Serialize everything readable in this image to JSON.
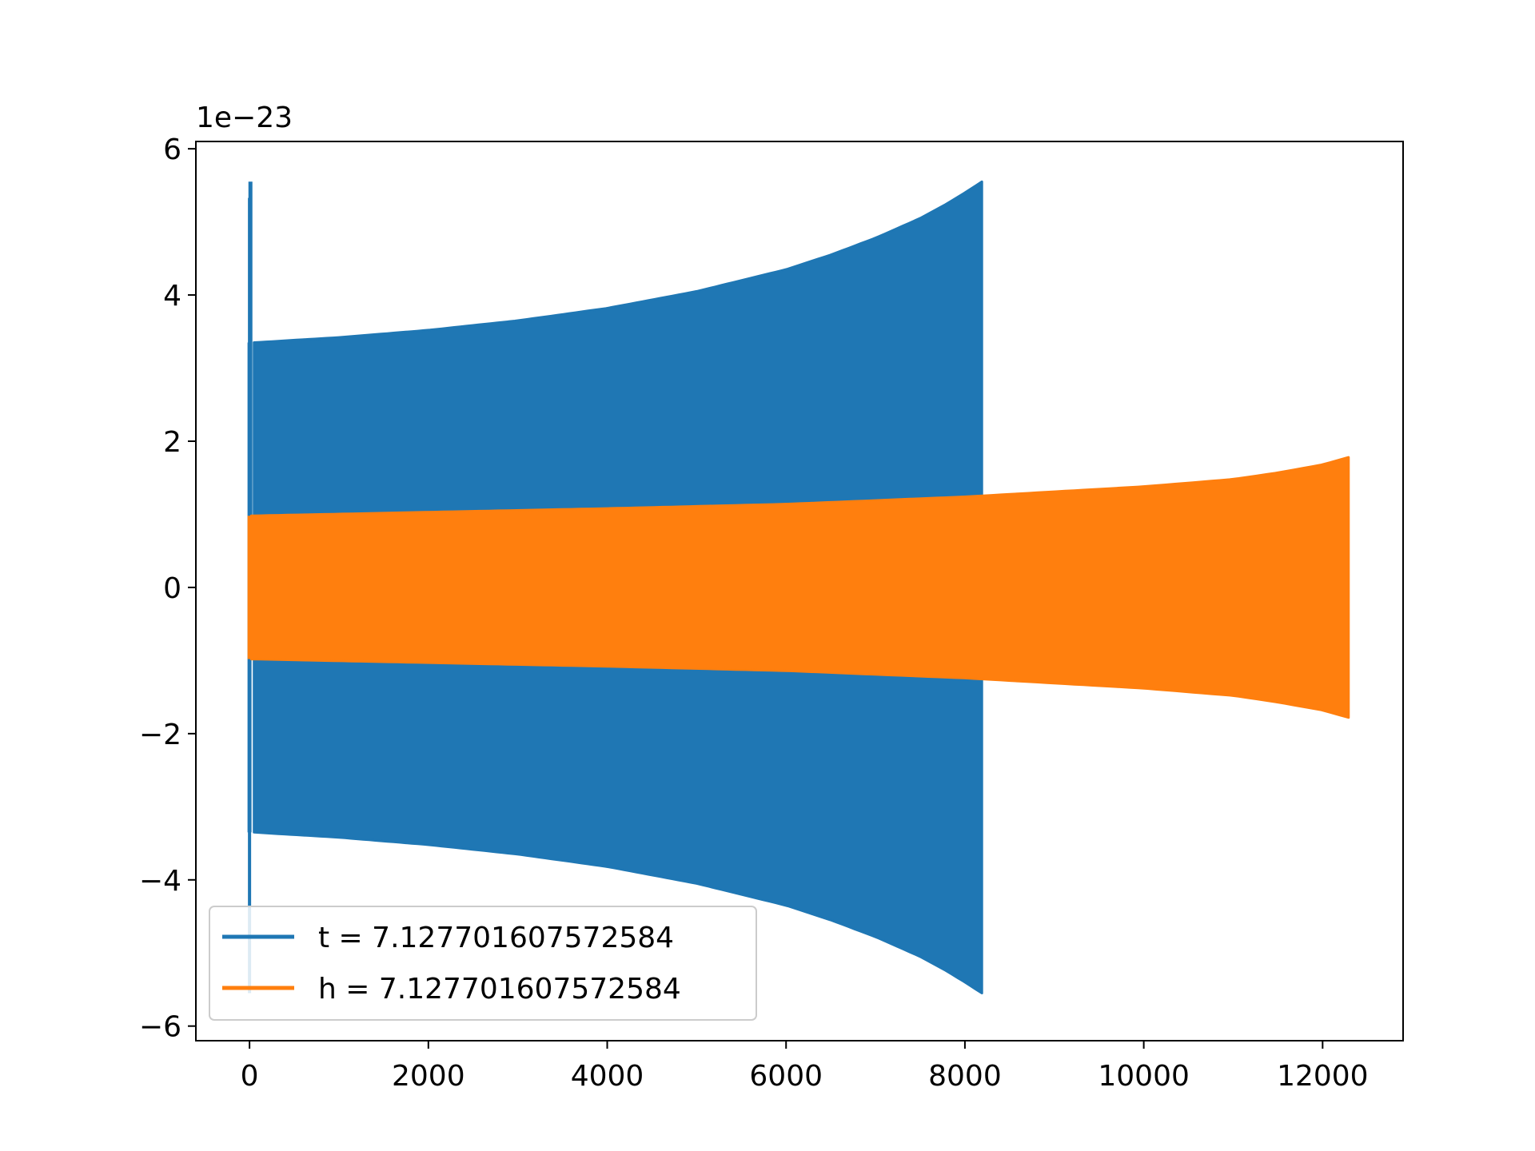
{
  "chart_data": {
    "type": "line",
    "title": "",
    "xlabel": "",
    "ylabel": "",
    "offset_text": "1e−23",
    "xlim": [
      -600,
      12900
    ],
    "ylim": [
      -6.2,
      6.1
    ],
    "x_ticks": [
      0,
      2000,
      4000,
      6000,
      8000,
      10000,
      12000
    ],
    "x_tick_labels": [
      "0",
      "2000",
      "4000",
      "6000",
      "8000",
      "10000",
      "12000"
    ],
    "y_ticks": [
      6,
      4,
      2,
      0,
      -2,
      -4,
      -6
    ],
    "y_tick_labels": [
      "6",
      "4",
      "2",
      "0",
      "−2",
      "−4",
      "−6"
    ],
    "grid": false,
    "legend_position": "lower-left",
    "series": [
      {
        "name": "t = 7.127701607572584",
        "color": "#1f77b4",
        "x_start": 0,
        "x_end": 8190,
        "spike_x": 10,
        "spike_max": 5.55,
        "spike_min": -5.55,
        "envelope_x": [
          50,
          1000,
          2000,
          3000,
          4000,
          5000,
          6000,
          6500,
          7000,
          7500,
          7800,
          8000,
          8190
        ],
        "envelope_amplitude": [
          3.35,
          3.42,
          3.52,
          3.65,
          3.82,
          4.05,
          4.35,
          4.55,
          4.78,
          5.05,
          5.25,
          5.4,
          5.55
        ]
      },
      {
        "name": "h = 7.127701607572584",
        "color": "#ff7f0e",
        "x_start": 0,
        "x_end": 12290,
        "envelope_x": [
          20,
          2000,
          4000,
          6000,
          8000,
          10000,
          11000,
          11500,
          12000,
          12290
        ],
        "envelope_amplitude": [
          0.98,
          1.03,
          1.08,
          1.14,
          1.24,
          1.38,
          1.48,
          1.57,
          1.68,
          1.78
        ]
      }
    ]
  }
}
